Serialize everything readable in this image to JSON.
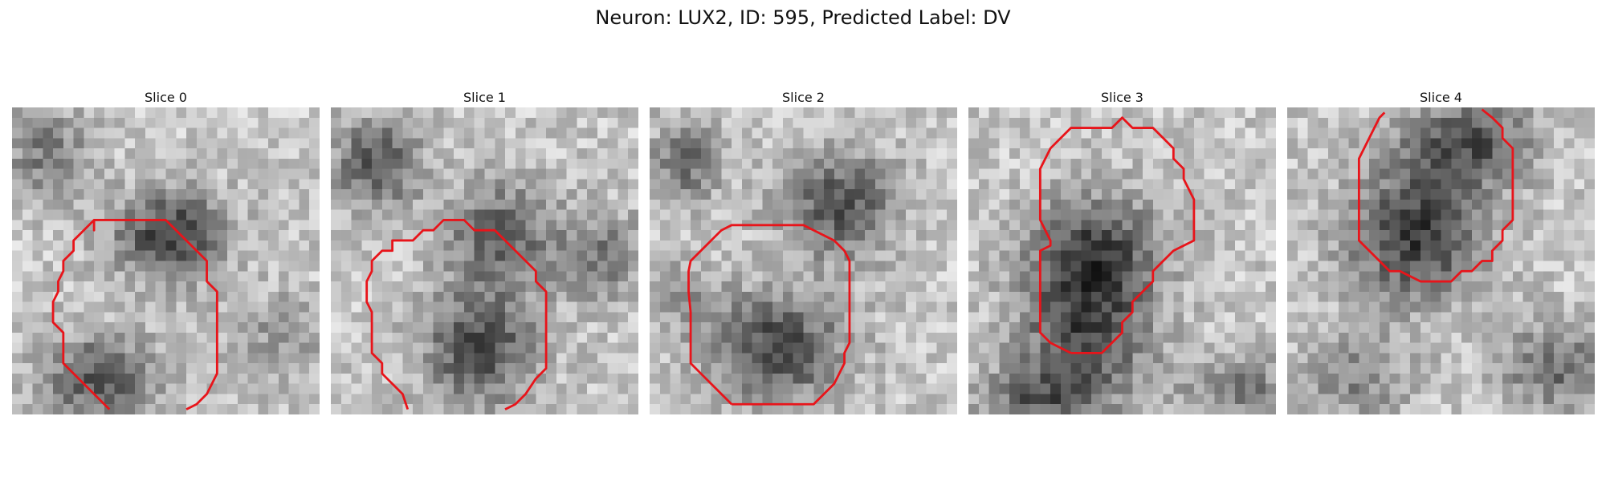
{
  "figure": {
    "title": "Neuron: LUX2, ID: 595, Predicted Label: DV",
    "neuron": "LUX2",
    "id": 595,
    "predicted_label": "DV",
    "contour_color": "#e8141a"
  },
  "panels": [
    {
      "title": "Slice 0"
    },
    {
      "title": "Slice 1"
    },
    {
      "title": "Slice 2"
    },
    {
      "title": "Slice 3"
    },
    {
      "title": "Slice 4"
    }
  ]
}
